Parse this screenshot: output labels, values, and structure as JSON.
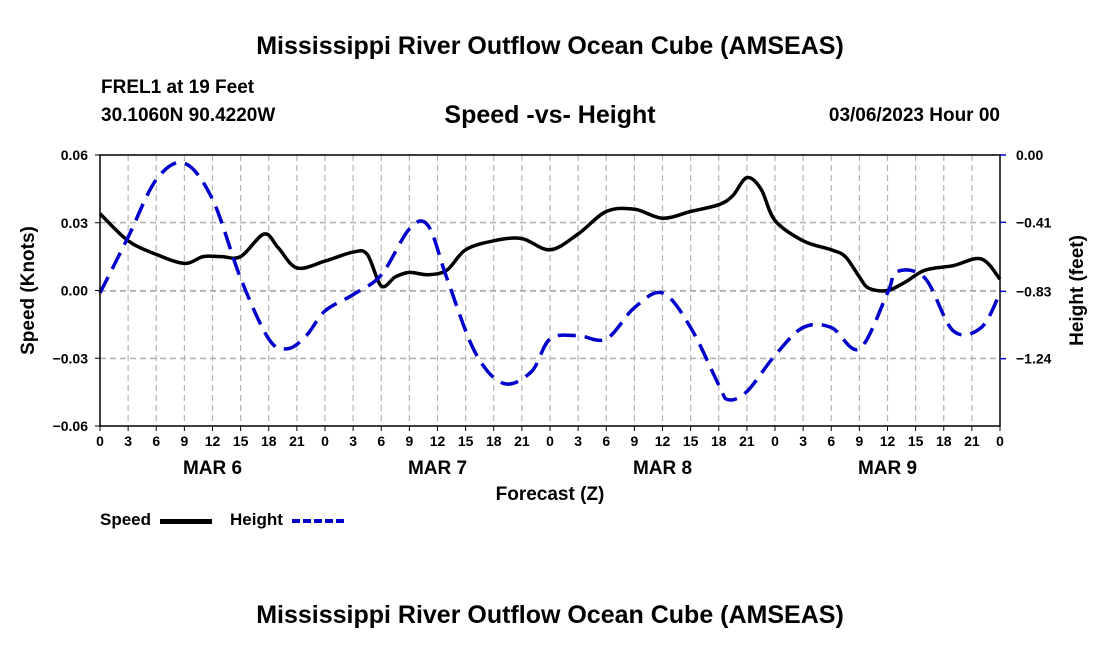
{
  "header": {
    "title": "Mississippi River Outflow Ocean Cube (AMSEAS)",
    "station": "FREL1 at 19 Feet",
    "coords": "30.1060N  90.4220W",
    "date": "03/06/2023 Hour 00",
    "footer_title": "Mississippi River Outflow Ocean Cube (AMSEAS)"
  },
  "legend": {
    "speed_label": "Speed",
    "height_label": "Height"
  },
  "colors": {
    "speed": "#000000",
    "height": "#0000cc",
    "grid": "#b4b4b4"
  },
  "chart_data": {
    "type": "line",
    "title": "Speed -vs- Height",
    "xlabel": "Forecast (Z)",
    "ylabel": "Speed (Knots)",
    "ylabel_right": "Height (feet)",
    "x_unit": "hours from MAR 6 00Z",
    "xlim": [
      0,
      96
    ],
    "ylim": [
      -0.06,
      0.06
    ],
    "ylim_right": [
      -1.65,
      0.0
    ],
    "x_tick_labels": [
      "0",
      "3",
      "6",
      "9",
      "12",
      "15",
      "18",
      "21",
      "0",
      "3",
      "6",
      "9",
      "12",
      "15",
      "18",
      "21",
      "0",
      "3",
      "6",
      "9",
      "12",
      "15",
      "18",
      "21",
      "0",
      "3",
      "6",
      "9",
      "12",
      "15",
      "18",
      "21",
      "0"
    ],
    "day_labels": [
      {
        "label": "MAR 6",
        "x": 12
      },
      {
        "label": "MAR 7",
        "x": 36
      },
      {
        "label": "MAR 8",
        "x": 60
      },
      {
        "label": "MAR 9",
        "x": 84
      }
    ],
    "y_ticks": [
      "0.06",
      "0.03",
      "0.00",
      "−0.03",
      "−0.06"
    ],
    "y_tick_values": [
      0.06,
      0.03,
      0.0,
      -0.03,
      -0.06
    ],
    "y_ticks_right": [
      "0.00",
      "−0.41",
      "−0.83",
      "−1.24"
    ],
    "y_tick_right_values": [
      0.0,
      -0.41,
      -0.83,
      -1.24
    ],
    "grid": true,
    "series": [
      {
        "name": "Speed",
        "axis": "left",
        "style": "solid",
        "x": [
          0,
          3,
          6,
          9,
          11,
          13,
          15,
          17.5,
          19,
          21,
          24,
          27,
          28.5,
          30,
          31.5,
          33,
          35,
          37,
          39,
          42,
          45,
          48,
          51,
          54,
          57,
          60,
          63,
          66,
          67.5,
          69,
          70.5,
          72,
          75,
          78,
          79.5,
          81,
          82,
          84,
          86,
          88,
          91,
          94,
          96
        ],
        "values": [
          0.034,
          0.022,
          0.016,
          0.012,
          0.015,
          0.015,
          0.015,
          0.025,
          0.019,
          0.01,
          0.013,
          0.017,
          0.016,
          0.002,
          0.006,
          0.008,
          0.007,
          0.009,
          0.018,
          0.022,
          0.023,
          0.018,
          0.025,
          0.035,
          0.036,
          0.032,
          0.035,
          0.038,
          0.042,
          0.05,
          0.045,
          0.031,
          0.022,
          0.018,
          0.015,
          0.006,
          0.001,
          0.0,
          0.004,
          0.009,
          0.011,
          0.014,
          0.005
        ]
      },
      {
        "name": "Height",
        "axis": "right",
        "style": "dashed",
        "x": [
          0,
          3,
          6,
          9,
          12,
          15,
          18,
          20,
          22,
          24,
          27,
          30,
          33,
          35,
          37,
          40,
          43,
          46,
          48,
          51,
          54,
          57,
          60,
          63,
          66,
          67,
          69,
          72,
          75,
          78,
          81,
          84,
          85,
          88,
          91,
          94,
          96
        ],
        "values": [
          -0.84,
          -0.5,
          -0.15,
          -0.05,
          -0.27,
          -0.75,
          -1.12,
          -1.18,
          -1.1,
          -0.95,
          -0.85,
          -0.73,
          -0.45,
          -0.43,
          -0.75,
          -1.2,
          -1.39,
          -1.32,
          -1.12,
          -1.1,
          -1.12,
          -0.93,
          -0.84,
          -1.05,
          -1.4,
          -1.49,
          -1.44,
          -1.22,
          -1.05,
          -1.05,
          -1.18,
          -0.84,
          -0.71,
          -0.75,
          -1.07,
          -1.05,
          -0.84
        ]
      }
    ]
  }
}
